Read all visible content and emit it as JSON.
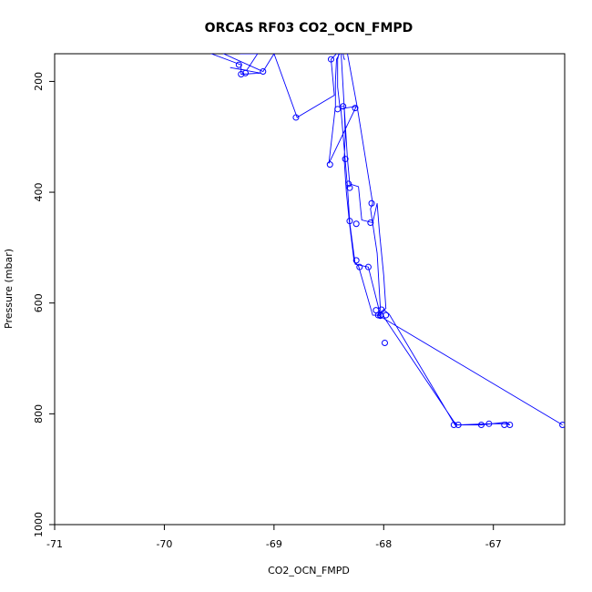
{
  "chart_data": {
    "type": "line",
    "title": "ORCAS RF03 CO2_OCN_FMPD",
    "xlabel": "CO2_OCN_FMPD",
    "ylabel": "Pressure (mbar)",
    "xlim": [
      -71,
      -66.35
    ],
    "ylim": [
      1000,
      150
    ],
    "y_inverted": true,
    "grid": false,
    "series_color": "#0000ff",
    "x_ticks": [
      -71,
      -70,
      -69,
      -68,
      -67
    ],
    "y_ticks": [
      200,
      400,
      600,
      800,
      1000
    ],
    "series": [
      {
        "x": [
          -69.68,
          -69.3,
          -69.3,
          -69.12,
          -69.4,
          -69.25,
          -69.15,
          -69.3,
          -69.55,
          -69.1,
          -69.0,
          -68.79,
          -68.45,
          -68.48,
          -68.39,
          -68.36,
          -68.33,
          -68.31,
          -68.23,
          -68.2,
          -68.1,
          -68.06,
          -68.04,
          -68.03,
          -68.0,
          -67.98,
          -68.02,
          -68.0,
          -67.95,
          -67.35,
          -67.31,
          -67.05,
          -66.9,
          -66.85,
          -66.88,
          -67.11,
          -67.34,
          -67.99,
          -68.02,
          -68.04,
          -68.03,
          -68.14,
          -68.26,
          -68.31,
          -68.33,
          -68.39,
          -68.35,
          -68.25,
          -68.5,
          -68.44,
          -68.44,
          -68.43,
          -68.38,
          -68.33,
          -68.24,
          -68.1,
          -68.12,
          -68.06,
          -68.03,
          -68.05,
          -66.37,
          -68.05,
          -68.02,
          -68.04,
          -68.1,
          -68.23,
          -68.27,
          -68.31,
          -68.34,
          -68.36,
          -68.35,
          -68.36,
          -68.4,
          -68.42,
          -68.42,
          -68.4,
          -68.38,
          -68.36,
          -68.35
        ],
        "y": [
          142,
          170,
          187,
          185,
          175,
          180,
          150,
          150,
          142,
          182,
          150,
          265,
          225,
          160,
          142,
          245,
          340,
          385,
          390,
          450,
          455,
          420,
          470,
          490,
          550,
          610,
          615,
          612,
          620,
          820,
          820,
          818,
          818,
          820,
          815,
          820,
          820,
          628,
          615,
          622,
          622,
          535,
          530,
          455,
          390,
          250,
          248,
          245,
          348,
          245,
          200,
          160,
          142,
          150,
          248,
          420,
          430,
          510,
          612,
          622,
          820,
          622,
          622,
          622,
          622,
          533,
          525,
          460,
          400,
          340,
          300,
          245,
          245,
          210,
          160,
          142,
          142,
          160,
          160
        ],
        "markers": [
          [
            -69.32,
            170
          ],
          [
            -69.3,
            187
          ],
          [
            -69.26,
            185
          ],
          [
            -69.1,
            182
          ],
          [
            -68.8,
            265
          ],
          [
            -68.48,
            160
          ],
          [
            -68.49,
            350
          ],
          [
            -68.42,
            250
          ],
          [
            -68.37,
            245
          ],
          [
            -68.35,
            340
          ],
          [
            -68.32,
            385
          ],
          [
            -68.31,
            392
          ],
          [
            -68.31,
            452
          ],
          [
            -68.26,
            248
          ],
          [
            -68.25,
            457
          ],
          [
            -68.25,
            523
          ],
          [
            -68.22,
            535
          ],
          [
            -68.14,
            535
          ],
          [
            -68.12,
            455
          ],
          [
            -68.11,
            420
          ],
          [
            -68.07,
            613
          ],
          [
            -68.05,
            622
          ],
          [
            -68.03,
            622
          ],
          [
            -68.03,
            623
          ],
          [
            -68.02,
            612
          ],
          [
            -67.98,
            622
          ],
          [
            -67.99,
            672
          ],
          [
            -67.36,
            820
          ],
          [
            -67.32,
            820
          ],
          [
            -67.11,
            820
          ],
          [
            -67.04,
            818
          ],
          [
            -66.9,
            820
          ],
          [
            -66.85,
            820
          ],
          [
            -66.37,
            820
          ]
        ]
      }
    ]
  }
}
